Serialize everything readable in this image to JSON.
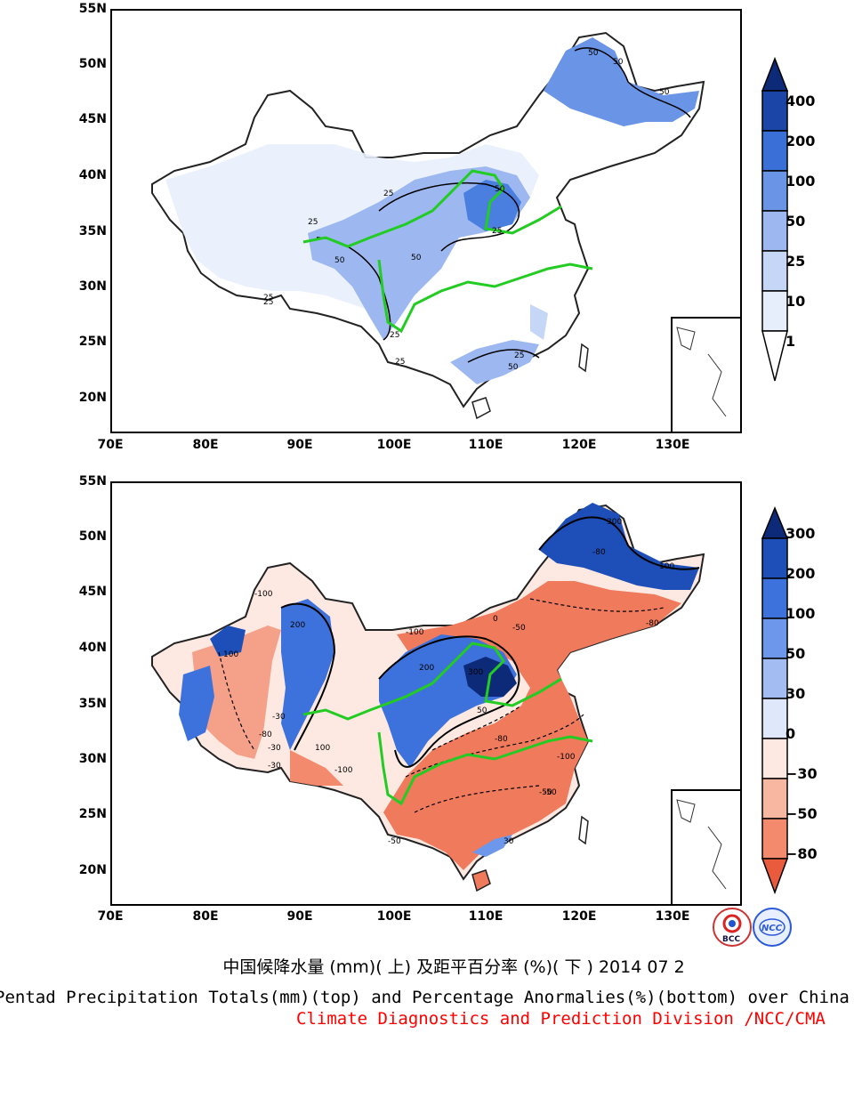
{
  "top_map": {
    "lat_ticks": [
      "55N",
      "50N",
      "45N",
      "40N",
      "35N",
      "30N",
      "25N",
      "20N"
    ],
    "lon_ticks": [
      "70E",
      "80E",
      "90E",
      "100E",
      "110E",
      "120E",
      "130E"
    ],
    "contour_labels": [
      "25",
      "50",
      "25",
      "50",
      "25",
      "50",
      "25",
      "25",
      "25",
      "50",
      "50",
      "25",
      "50",
      "50",
      "25"
    ],
    "colorbar": {
      "levels": [
        "1",
        "10",
        "25",
        "50",
        "100",
        "200",
        "400"
      ],
      "colors": [
        "#ffffff",
        "#e6eefc",
        "#c6d6f6",
        "#9db8f0",
        "#6a95e6",
        "#3a6fd8",
        "#1b46a8",
        "#0c2a78"
      ]
    }
  },
  "bottom_map": {
    "lat_ticks": [
      "55N",
      "50N",
      "45N",
      "40N",
      "35N",
      "30N",
      "25N",
      "20N"
    ],
    "lon_ticks": [
      "70E",
      "80E",
      "90E",
      "100E",
      "110E",
      "120E",
      "130E"
    ],
    "contour_labels": [
      "300",
      "200",
      "-100",
      "100",
      "200",
      "300",
      "-80",
      "-50",
      "-30",
      "-100",
      "100",
      "0",
      "-80",
      "-50",
      "-100",
      "-30",
      "-50",
      "-80",
      "-100",
      "-50",
      "-80",
      "-30",
      "100",
      "50",
      "30"
    ],
    "colorbar": {
      "levels": [
        "300",
        "200",
        "100",
        "50",
        "30",
        "0",
        "−30",
        "−50",
        "−80"
      ],
      "colors": [
        "#0c2a78",
        "#1e4fb8",
        "#3d72dc",
        "#6d97ea",
        "#a3bdf2",
        "#dfe8fb",
        "#fde9e2",
        "#f8b7a0",
        "#f38a6e",
        "#ea5a3c"
      ]
    }
  },
  "titles": {
    "chinese": "中国候降水量 (mm)( 上) 及距平百分率 (%)( 下 ) 2014 07 2",
    "english": "Pentad Precipitation Totals(mm)(top) and Percentage Anormalies(%)(bottom) over China",
    "org": "Climate Diagnostics and Prediction Division /NCC/CMA"
  },
  "logos": {
    "left": "BCC",
    "right": "NCC"
  }
}
